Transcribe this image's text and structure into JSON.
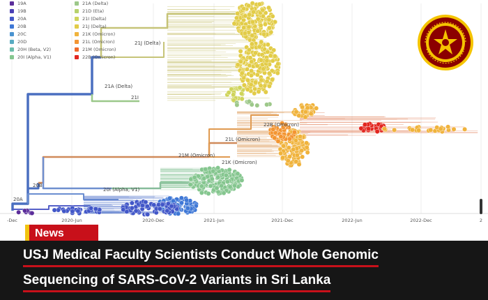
{
  "legend": [
    {
      "label": "19A",
      "color": "#5b2d9a"
    },
    {
      "label": "21A (Delta)",
      "color": "#9dc88a"
    },
    {
      "label": "19B",
      "color": "#4a3fb5"
    },
    {
      "label": "21D (Eta)",
      "color": "#b7d26c"
    },
    {
      "label": "20A",
      "color": "#4257c8"
    },
    {
      "label": "21I (Delta)",
      "color": "#cfd45a"
    },
    {
      "label": "20B",
      "color": "#3f78d6"
    },
    {
      "label": "21J (Delta)",
      "color": "#e2cc48"
    },
    {
      "label": "20C",
      "color": "#4a93d0"
    },
    {
      "label": "21K (Omicron)",
      "color": "#f0b33c"
    },
    {
      "label": "20D",
      "color": "#58abc2"
    },
    {
      "label": "21L (Omicron)",
      "color": "#f39532"
    },
    {
      "label": "20H (Beta, V2)",
      "color": "#6cbdab"
    },
    {
      "label": "21M (Omicron)",
      "color": "#ef6a2b"
    },
    {
      "label": "20I (Alpha, V1)",
      "color": "#85c68f"
    },
    {
      "label": "22B (Omicron)",
      "color": "#e2261f"
    }
  ],
  "clade_labels": [
    "21J (Delta)",
    "21A (Delta)",
    "21I",
    "22B (Omicron)",
    "21L (Omicron)",
    "21M (Omicron)",
    "21K (Omicron)",
    "20I (Alpha, V1)",
    "20B",
    "20A"
  ],
  "x_ticks": [
    "-Dec",
    "2020-Jun",
    "2020-Dec",
    "2021-Jun",
    "2021-Dec",
    "2022-Jun",
    "2022-Dec",
    "2"
  ],
  "colors": {
    "banner": "#161616",
    "accent_red": "#c8101a",
    "accent_yellow": "#f1c40f",
    "logo_yellow": "#f5c400",
    "logo_maroon": "#8b0000"
  },
  "news_badge": "News",
  "headline": {
    "line1": "USJ Medical Faculty Scientists Conduct Whole Genomic",
    "line2": "Sequencing of SARS-CoV-2 Variants in Sri Lanka"
  },
  "logo_icon": "university-seal-icon"
}
